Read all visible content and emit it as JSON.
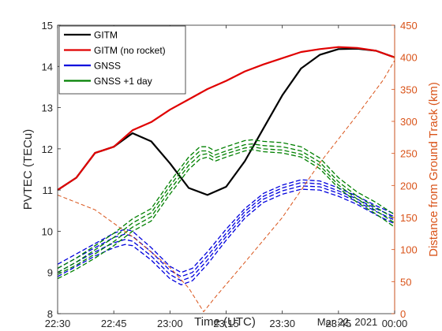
{
  "chart_data": {
    "type": "line",
    "xlabel": "Time (UTC)",
    "date_label": "Mar 22, 2021",
    "ylabel_left": "PVTEC (TECu)",
    "ylabel_right": "Distance from Ground Track (km)",
    "x_tick_labels": [
      "22:30",
      "22:45",
      "23:00",
      "23:15",
      "23:30",
      "23:45",
      "00:00"
    ],
    "x_range_minutes": [
      0,
      90
    ],
    "y_left": {
      "min": 8,
      "max": 15,
      "ticks": [
        8,
        9,
        10,
        11,
        12,
        13,
        14,
        15
      ]
    },
    "y_right": {
      "min": 0,
      "max": 450,
      "ticks": [
        0,
        50,
        100,
        150,
        200,
        250,
        300,
        350,
        400,
        450
      ]
    },
    "grid": false,
    "legend_position": "top-left",
    "colors": {
      "gitm": "#000000",
      "gitm_no_rocket": "#e00000",
      "gnss": "#0000dd",
      "gnss_plus1": "#008000",
      "distance": "#d95319"
    },
    "legend": [
      {
        "label": "GITM",
        "color": "#000000"
      },
      {
        "label": "GITM (no rocket)",
        "color": "#e00000"
      },
      {
        "label": "GNSS",
        "color": "#0000dd"
      },
      {
        "label": "GNSS +1 day",
        "color": "#008000"
      }
    ],
    "series": [
      {
        "name": "GITM",
        "axis": "left",
        "style": "solid",
        "color": "#000000",
        "points": [
          [
            0,
            11.0
          ],
          [
            5,
            11.3
          ],
          [
            10,
            11.9
          ],
          [
            15,
            12.05
          ],
          [
            20,
            12.38
          ],
          [
            25,
            12.18
          ],
          [
            30,
            11.65
          ],
          [
            35,
            11.05
          ],
          [
            40,
            10.88
          ],
          [
            45,
            11.08
          ],
          [
            50,
            11.7
          ],
          [
            55,
            12.5
          ],
          [
            60,
            13.3
          ],
          [
            65,
            13.95
          ],
          [
            70,
            14.28
          ],
          [
            75,
            14.42
          ],
          [
            80,
            14.43
          ],
          [
            85,
            14.38
          ],
          [
            90,
            14.22
          ]
        ]
      },
      {
        "name": "GITM (no rocket)",
        "axis": "left",
        "style": "solid",
        "color": "#e00000",
        "points": [
          [
            0,
            11.0
          ],
          [
            5,
            11.3
          ],
          [
            10,
            11.9
          ],
          [
            15,
            12.05
          ],
          [
            20,
            12.45
          ],
          [
            25,
            12.65
          ],
          [
            30,
            12.95
          ],
          [
            35,
            13.2
          ],
          [
            40,
            13.45
          ],
          [
            45,
            13.65
          ],
          [
            50,
            13.88
          ],
          [
            55,
            14.05
          ],
          [
            60,
            14.2
          ],
          [
            65,
            14.35
          ],
          [
            70,
            14.42
          ],
          [
            75,
            14.47
          ],
          [
            80,
            14.45
          ],
          [
            85,
            14.38
          ],
          [
            90,
            14.22
          ]
        ]
      },
      {
        "name": "GNSS",
        "axis": "left",
        "style": "dashed",
        "color": "#0000dd",
        "lines": [
          [
            [
              0,
              9.2
            ],
            [
              5,
              9.45
            ],
            [
              10,
              9.7
            ],
            [
              15,
              9.95
            ],
            [
              18,
              10.05
            ],
            [
              20,
              10.0
            ],
            [
              25,
              9.6
            ],
            [
              30,
              9.15
            ],
            [
              33,
              9.0
            ],
            [
              36,
              9.1
            ],
            [
              40,
              9.5
            ],
            [
              45,
              10.05
            ],
            [
              50,
              10.55
            ],
            [
              55,
              10.92
            ],
            [
              60,
              11.12
            ],
            [
              65,
              11.25
            ],
            [
              70,
              11.22
            ],
            [
              75,
              11.05
            ],
            [
              80,
              10.85
            ],
            [
              85,
              10.62
            ],
            [
              90,
              10.42
            ]
          ],
          [
            [
              0,
              9.1
            ],
            [
              5,
              9.35
            ],
            [
              10,
              9.6
            ],
            [
              15,
              9.85
            ],
            [
              18,
              9.93
            ],
            [
              20,
              9.88
            ],
            [
              25,
              9.5
            ],
            [
              30,
              9.05
            ],
            [
              33,
              8.9
            ],
            [
              36,
              9.0
            ],
            [
              40,
              9.4
            ],
            [
              45,
              9.95
            ],
            [
              50,
              10.48
            ],
            [
              55,
              10.85
            ],
            [
              60,
              11.05
            ],
            [
              65,
              11.18
            ],
            [
              70,
              11.15
            ],
            [
              75,
              10.98
            ],
            [
              80,
              10.78
            ],
            [
              85,
              10.55
            ],
            [
              90,
              10.35
            ]
          ],
          [
            [
              0,
              9.0
            ],
            [
              5,
              9.25
            ],
            [
              10,
              9.5
            ],
            [
              15,
              9.72
            ],
            [
              18,
              9.8
            ],
            [
              20,
              9.76
            ],
            [
              25,
              9.4
            ],
            [
              30,
              8.95
            ],
            [
              33,
              8.8
            ],
            [
              36,
              8.9
            ],
            [
              40,
              9.3
            ],
            [
              45,
              9.87
            ],
            [
              50,
              10.4
            ],
            [
              55,
              10.78
            ],
            [
              60,
              10.98
            ],
            [
              65,
              11.1
            ],
            [
              70,
              11.08
            ],
            [
              75,
              10.92
            ],
            [
              80,
              10.72
            ],
            [
              85,
              10.48
            ],
            [
              90,
              10.27
            ]
          ],
          [
            [
              0,
              8.9
            ],
            [
              5,
              9.15
            ],
            [
              10,
              9.4
            ],
            [
              15,
              9.6
            ],
            [
              18,
              9.68
            ],
            [
              20,
              9.65
            ],
            [
              25,
              9.3
            ],
            [
              30,
              8.85
            ],
            [
              33,
              8.7
            ],
            [
              36,
              8.8
            ],
            [
              40,
              9.2
            ],
            [
              45,
              9.78
            ],
            [
              50,
              10.32
            ],
            [
              55,
              10.7
            ],
            [
              60,
              10.9
            ],
            [
              65,
              11.02
            ],
            [
              70,
              11.0
            ],
            [
              75,
              10.85
            ],
            [
              80,
              10.65
            ],
            [
              85,
              10.4
            ],
            [
              90,
              10.18
            ]
          ]
        ]
      },
      {
        "name": "GNSS +1 day",
        "axis": "left",
        "style": "dashed",
        "color": "#008000",
        "lines": [
          [
            [
              0,
              9.1
            ],
            [
              5,
              9.35
            ],
            [
              10,
              9.65
            ],
            [
              15,
              9.95
            ],
            [
              20,
              10.3
            ],
            [
              25,
              10.55
            ],
            [
              30,
              11.2
            ],
            [
              35,
              11.8
            ],
            [
              38,
              12.05
            ],
            [
              40,
              12.05
            ],
            [
              42,
              11.95
            ],
            [
              45,
              12.05
            ],
            [
              50,
              12.2
            ],
            [
              52,
              12.22
            ],
            [
              55,
              12.18
            ],
            [
              60,
              12.15
            ],
            [
              65,
              12.05
            ],
            [
              70,
              11.78
            ],
            [
              75,
              11.3
            ],
            [
              80,
              10.95
            ],
            [
              85,
              10.7
            ],
            [
              90,
              10.4
            ]
          ],
          [
            [
              0,
              9.0
            ],
            [
              5,
              9.25
            ],
            [
              10,
              9.55
            ],
            [
              15,
              9.85
            ],
            [
              20,
              10.2
            ],
            [
              25,
              10.45
            ],
            [
              30,
              11.1
            ],
            [
              35,
              11.7
            ],
            [
              38,
              11.95
            ],
            [
              40,
              11.95
            ],
            [
              42,
              11.85
            ],
            [
              45,
              11.95
            ],
            [
              50,
              12.1
            ],
            [
              52,
              12.12
            ],
            [
              55,
              12.08
            ],
            [
              60,
              12.05
            ],
            [
              65,
              11.95
            ],
            [
              70,
              11.68
            ],
            [
              75,
              11.2
            ],
            [
              80,
              10.85
            ],
            [
              85,
              10.58
            ],
            [
              90,
              10.3
            ]
          ],
          [
            [
              0,
              8.95
            ],
            [
              5,
              9.18
            ],
            [
              10,
              9.45
            ],
            [
              15,
              9.75
            ],
            [
              20,
              10.1
            ],
            [
              25,
              10.35
            ],
            [
              30,
              11.0
            ],
            [
              35,
              11.6
            ],
            [
              38,
              11.85
            ],
            [
              40,
              11.88
            ],
            [
              42,
              11.78
            ],
            [
              45,
              11.88
            ],
            [
              50,
              12.02
            ],
            [
              52,
              12.05
            ],
            [
              55,
              12.0
            ],
            [
              60,
              11.97
            ],
            [
              65,
              11.87
            ],
            [
              70,
              11.6
            ],
            [
              75,
              11.12
            ],
            [
              80,
              10.78
            ],
            [
              85,
              10.5
            ],
            [
              90,
              10.2
            ]
          ],
          [
            [
              0,
              8.85
            ],
            [
              5,
              9.08
            ],
            [
              10,
              9.35
            ],
            [
              15,
              9.65
            ],
            [
              20,
              10.0
            ],
            [
              25,
              10.25
            ],
            [
              30,
              10.9
            ],
            [
              35,
              11.5
            ],
            [
              38,
              11.75
            ],
            [
              40,
              11.8
            ],
            [
              42,
              11.7
            ],
            [
              45,
              11.8
            ],
            [
              50,
              11.95
            ],
            [
              52,
              11.98
            ],
            [
              55,
              11.93
            ],
            [
              60,
              11.9
            ],
            [
              65,
              11.8
            ],
            [
              70,
              11.52
            ],
            [
              75,
              11.05
            ],
            [
              80,
              10.7
            ],
            [
              85,
              10.42
            ],
            [
              90,
              10.1
            ]
          ]
        ]
      },
      {
        "name": "Distance",
        "axis": "right",
        "style": "dashed",
        "color": "#d95319",
        "points": [
          [
            0,
            185
          ],
          [
            10,
            162
          ],
          [
            20,
            120
          ],
          [
            30,
            72
          ],
          [
            35,
            40
          ],
          [
            39,
            3
          ],
          [
            42,
            25
          ],
          [
            50,
            80
          ],
          [
            60,
            150
          ],
          [
            70,
            235
          ],
          [
            80,
            310
          ],
          [
            87,
            365
          ],
          [
            90,
            395
          ]
        ]
      }
    ]
  }
}
